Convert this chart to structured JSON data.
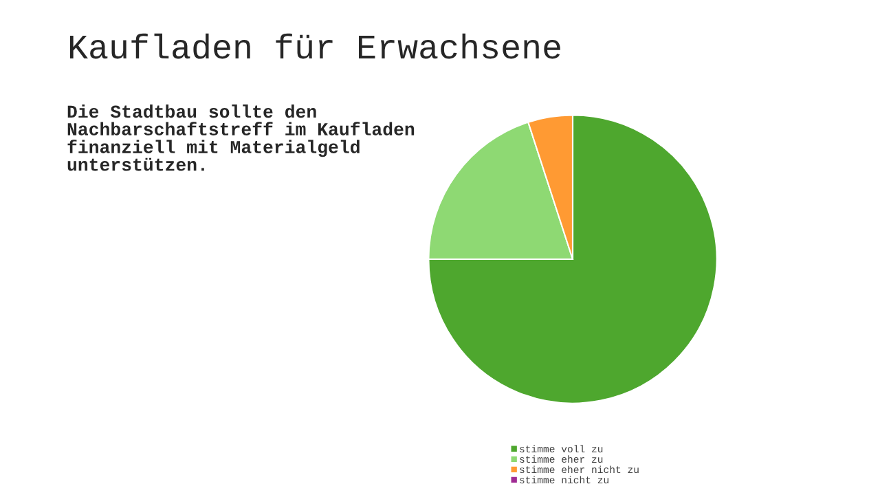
{
  "chart_data": {
    "type": "pie",
    "title": "Kaufladen für Erwachsene",
    "subtitle": "Die Stadtbau sollte den Nachbarschaftstreff im Kaufladen finanziell mit Materialgeld unterstützen.",
    "categories": [
      "stimme voll zu",
      "stimme eher zu",
      "stimme eher nicht zu",
      "stimme nicht zu"
    ],
    "values": [
      75,
      20,
      5,
      0
    ],
    "colors": [
      "#4ea72e",
      "#8ed973",
      "#ff9a33",
      "#a02b93"
    ],
    "legend": "bottom"
  }
}
